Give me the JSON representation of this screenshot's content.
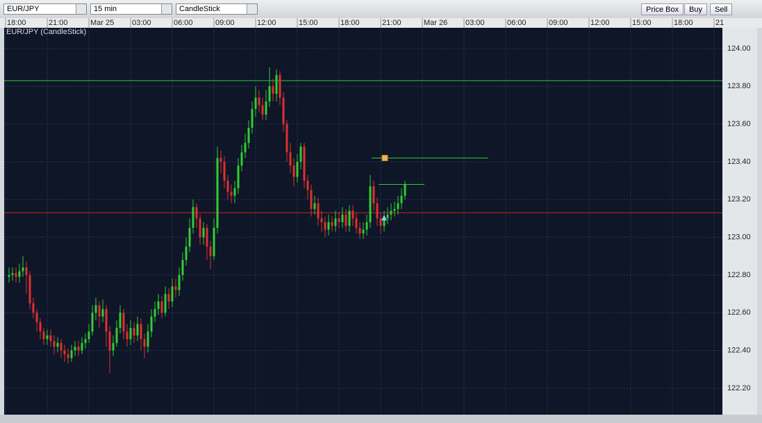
{
  "toolbar": {
    "symbol": "EUR/JPY",
    "interval": "15 min",
    "chart_style": "CandleStick",
    "buttons": [
      "Price Box",
      "Buy",
      "Sell"
    ]
  },
  "chart_data": {
    "type": "candlestick",
    "title": "EUR/JPY (CandleStick)",
    "x": [
      1,
      2,
      3,
      4,
      5,
      6,
      7,
      8,
      9,
      10,
      11,
      12,
      13,
      14,
      15,
      16,
      17,
      18,
      19,
      20,
      21,
      22,
      23,
      24,
      25,
      26,
      27,
      28,
      29,
      30,
      31,
      32,
      33,
      34,
      35,
      36,
      37,
      38,
      39,
      40,
      41,
      42,
      43,
      44,
      45,
      46,
      47,
      48,
      49,
      50,
      51,
      52,
      53,
      54,
      55,
      56,
      57,
      58,
      59,
      60,
      61,
      62,
      63,
      64,
      65,
      66,
      67,
      68,
      69,
      70,
      71,
      72,
      73,
      74,
      75,
      76,
      77,
      78,
      79,
      80,
      81,
      82,
      83,
      84,
      85,
      86,
      87,
      88,
      89,
      90,
      91,
      92,
      93,
      94,
      95,
      96,
      97,
      98,
      99,
      100,
      101,
      102,
      103,
      104,
      105,
      106,
      107,
      108,
      109,
      110,
      111,
      112,
      113,
      114,
      115
    ],
    "open": [
      122.79,
      122.8,
      122.81,
      122.79,
      122.82,
      122.84,
      122.8,
      122.65,
      122.6,
      122.55,
      122.5,
      122.46,
      122.48,
      122.45,
      122.42,
      122.44,
      122.4,
      122.38,
      122.36,
      122.4,
      122.42,
      122.4,
      122.44,
      122.46,
      122.5,
      122.6,
      122.64,
      122.58,
      122.62,
      122.5,
      122.4,
      122.44,
      122.52,
      122.6,
      122.5,
      122.46,
      122.52,
      122.48,
      122.54,
      122.46,
      122.42,
      122.5,
      122.58,
      122.62,
      122.66,
      122.6,
      122.7,
      122.66,
      122.74,
      122.72,
      122.8,
      122.88,
      122.95,
      123.05,
      123.16,
      123.1,
      123.0,
      123.05,
      122.95,
      122.9,
      123.05,
      123.42,
      123.4,
      123.3,
      123.24,
      123.22,
      123.26,
      123.38,
      123.45,
      123.5,
      123.58,
      123.68,
      123.74,
      123.7,
      123.65,
      123.72,
      123.8,
      123.76,
      123.86,
      123.74,
      123.6,
      123.45,
      123.38,
      123.32,
      123.4,
      123.48,
      123.3,
      123.25,
      123.15,
      123.18,
      123.1,
      123.08,
      123.04,
      123.08,
      123.06,
      123.1,
      123.08,
      123.12,
      123.06,
      123.14,
      123.1,
      123.05,
      123.02,
      123.04,
      123.08,
      123.27,
      123.18,
      123.1,
      123.06,
      123.1,
      123.12,
      123.14,
      123.15,
      123.18,
      123.22
    ],
    "high": [
      122.84,
      122.84,
      122.84,
      122.86,
      122.9,
      122.87,
      122.82,
      122.68,
      122.62,
      122.57,
      122.52,
      122.51,
      122.51,
      122.48,
      122.47,
      122.46,
      122.43,
      122.41,
      122.43,
      122.45,
      122.45,
      122.47,
      122.49,
      122.54,
      122.64,
      122.68,
      122.66,
      122.67,
      122.64,
      122.53,
      122.48,
      122.56,
      122.64,
      122.62,
      122.54,
      122.56,
      122.55,
      122.58,
      122.57,
      122.49,
      122.54,
      122.62,
      122.66,
      122.7,
      122.69,
      122.74,
      122.73,
      122.78,
      122.78,
      122.84,
      122.92,
      123.0,
      123.1,
      123.2,
      123.18,
      123.12,
      123.08,
      123.07,
      122.98,
      123.1,
      123.48,
      123.46,
      123.43,
      123.33,
      123.28,
      123.3,
      123.42,
      123.49,
      123.55,
      123.62,
      123.72,
      123.8,
      123.78,
      123.74,
      123.78,
      123.9,
      123.84,
      123.89,
      123.88,
      123.77,
      123.62,
      123.5,
      123.42,
      123.44,
      123.5,
      123.5,
      123.33,
      123.28,
      123.22,
      123.21,
      123.14,
      123.11,
      123.12,
      123.11,
      123.14,
      123.13,
      123.16,
      123.15,
      123.17,
      123.17,
      123.13,
      123.08,
      123.08,
      123.12,
      123.33,
      123.3,
      123.21,
      123.13,
      123.14,
      123.16,
      123.18,
      123.19,
      123.22,
      123.26,
      123.3
    ],
    "low": [
      122.76,
      122.77,
      122.76,
      122.76,
      122.79,
      122.7,
      122.62,
      122.57,
      122.5,
      122.46,
      122.43,
      122.43,
      122.42,
      122.38,
      122.39,
      122.36,
      122.34,
      122.33,
      122.34,
      122.37,
      122.37,
      122.38,
      122.41,
      122.44,
      122.48,
      122.56,
      122.52,
      122.55,
      122.42,
      122.28,
      122.37,
      122.42,
      122.49,
      122.46,
      122.42,
      122.43,
      122.44,
      122.45,
      122.4,
      122.36,
      122.39,
      122.47,
      122.55,
      122.59,
      122.57,
      122.58,
      122.62,
      122.63,
      122.68,
      122.69,
      122.77,
      122.85,
      122.92,
      123.02,
      123.05,
      122.96,
      122.96,
      122.88,
      122.83,
      122.88,
      123.02,
      123.34,
      123.26,
      123.2,
      123.18,
      123.18,
      123.23,
      123.35,
      123.42,
      123.47,
      123.55,
      123.64,
      123.66,
      123.62,
      123.62,
      123.69,
      123.72,
      123.72,
      123.7,
      123.56,
      123.4,
      123.34,
      123.27,
      123.29,
      123.36,
      123.26,
      123.2,
      123.11,
      123.12,
      123.06,
      123.03,
      123.0,
      123.01,
      123.03,
      123.03,
      123.05,
      123.05,
      123.03,
      123.03,
      123.06,
      123.02,
      122.99,
      122.99,
      123.01,
      123.05,
      123.14,
      123.06,
      123.02,
      123.03,
      123.07,
      123.09,
      123.11,
      123.12,
      123.15,
      123.2
    ],
    "close": [
      122.8,
      122.81,
      122.79,
      122.82,
      122.84,
      122.8,
      122.65,
      122.6,
      122.55,
      122.5,
      122.46,
      122.48,
      122.45,
      122.42,
      122.44,
      122.4,
      122.38,
      122.36,
      122.4,
      122.42,
      122.4,
      122.44,
      122.46,
      122.5,
      122.6,
      122.64,
      122.58,
      122.62,
      122.5,
      122.4,
      122.44,
      122.52,
      122.6,
      122.5,
      122.46,
      122.52,
      122.48,
      122.54,
      122.46,
      122.42,
      122.5,
      122.58,
      122.62,
      122.66,
      122.6,
      122.7,
      122.66,
      122.74,
      122.72,
      122.8,
      122.88,
      122.95,
      123.05,
      123.16,
      123.1,
      123.0,
      123.05,
      122.95,
      122.9,
      123.05,
      123.42,
      123.4,
      123.3,
      123.24,
      123.22,
      123.26,
      123.38,
      123.45,
      123.5,
      123.58,
      123.68,
      123.74,
      123.7,
      123.65,
      123.72,
      123.8,
      123.76,
      123.86,
      123.74,
      123.6,
      123.45,
      123.38,
      123.32,
      123.4,
      123.48,
      123.3,
      123.25,
      123.15,
      123.18,
      123.1,
      123.08,
      123.04,
      123.08,
      123.06,
      123.1,
      123.08,
      123.12,
      123.06,
      123.14,
      123.1,
      123.05,
      123.02,
      123.04,
      123.08,
      123.27,
      123.18,
      123.1,
      123.06,
      123.1,
      123.12,
      123.14,
      123.15,
      123.18,
      123.22,
      123.28
    ],
    "up_color": "#33cc33",
    "down_color": "#e03030",
    "levels": [
      {
        "value": 123.83,
        "color": "#33cc33"
      },
      {
        "value": 123.13,
        "color": "#cc2222"
      }
    ],
    "orders": [
      {
        "value": 123.42,
        "x": [
          105.4,
          139
        ],
        "color": "#33cc33",
        "marker_color": "#f0b060"
      },
      {
        "value": 123.28,
        "x": [
          107.4,
          120.6
        ],
        "color": "#33cc33"
      }
    ],
    "signal": {
      "x": 109,
      "value": 123.1,
      "color": "#88ccff"
    },
    "xlim": [
      -0.4,
      206.4
    ],
    "xticks": [
      {
        "value": 0,
        "label": "18:00"
      },
      {
        "value": 12,
        "label": "21:00"
      },
      {
        "value": 24,
        "label": "Mar 25"
      },
      {
        "value": 36,
        "label": "03:00"
      },
      {
        "value": 48,
        "label": "06:00"
      },
      {
        "value": 60,
        "label": "09:00"
      },
      {
        "value": 72,
        "label": "12:00"
      },
      {
        "value": 84,
        "label": "15:00"
      },
      {
        "value": 96,
        "label": "18:00"
      },
      {
        "value": 108,
        "label": "21:00"
      },
      {
        "value": 120,
        "label": "Mar 26"
      },
      {
        "value": 132,
        "label": "03:00"
      },
      {
        "value": 144,
        "label": "06:00"
      },
      {
        "value": 156,
        "label": "09:00"
      },
      {
        "value": 168,
        "label": "12:00"
      },
      {
        "value": 180,
        "label": "15:00"
      },
      {
        "value": 192,
        "label": "18:00"
      },
      {
        "value": 204,
        "label": "21"
      }
    ],
    "ylim": [
      122.06,
      124.11
    ],
    "yticks": [
      {
        "value": 122.2,
        "label": "122.20"
      },
      {
        "value": 122.4,
        "label": "122.40"
      },
      {
        "value": 122.6,
        "label": "122.60"
      },
      {
        "value": 122.8,
        "label": "122.80"
      },
      {
        "value": 123,
        "label": "123.00"
      },
      {
        "value": 123.2,
        "label": "123.20"
      },
      {
        "value": 123.4,
        "label": "123.40"
      },
      {
        "value": 123.6,
        "label": "123.60"
      },
      {
        "value": 123.8,
        "label": "123.80"
      },
      {
        "value": 124,
        "label": "124.00"
      }
    ],
    "grid": true
  }
}
